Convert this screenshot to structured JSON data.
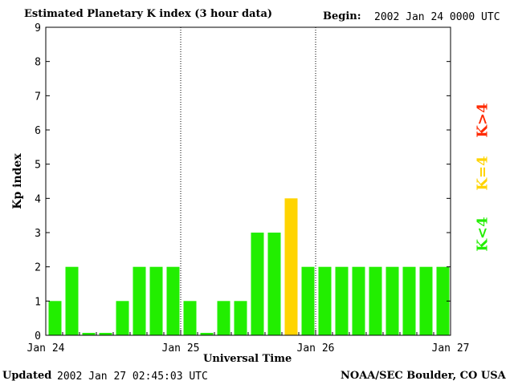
{
  "header": {
    "title": "Estimated Planetary K index (3 hour data)",
    "begin_label": "Begin:",
    "begin_value": "2002 Jan 24 0000 UTC"
  },
  "footer": {
    "updated_label": "Updated",
    "updated_value": "2002 Jan 27 02:45:03 UTC",
    "source": "NOAA/SEC Boulder, CO USA"
  },
  "legend": [
    {
      "label": "K>4",
      "color": "#ff2a00"
    },
    {
      "label": "K=4",
      "color": "#ffd400"
    },
    {
      "label": "K<4",
      "color": "#22ee00"
    }
  ],
  "chart_data": {
    "type": "bar",
    "title": "Estimated Planetary K index (3 hour data)",
    "xlabel": "Universal Time",
    "ylabel": "Kp index",
    "ylim": [
      0,
      9
    ],
    "yticks": [
      0,
      1,
      2,
      3,
      4,
      5,
      6,
      7,
      8,
      9
    ],
    "x_day_labels": [
      "Jan 24",
      "Jan 25",
      "Jan 26",
      "Jan 27"
    ],
    "interval_hours": 3,
    "values": [
      1,
      2,
      0,
      0,
      1,
      2,
      2,
      2,
      1,
      0,
      1,
      1,
      3,
      3,
      4,
      2,
      2,
      2,
      2,
      2,
      2,
      2,
      2,
      2
    ],
    "colors": {
      "low": "#22ee00",
      "equal": "#ffd400",
      "high": "#ff2a00"
    },
    "grid": false,
    "day_separators": "dotted"
  }
}
